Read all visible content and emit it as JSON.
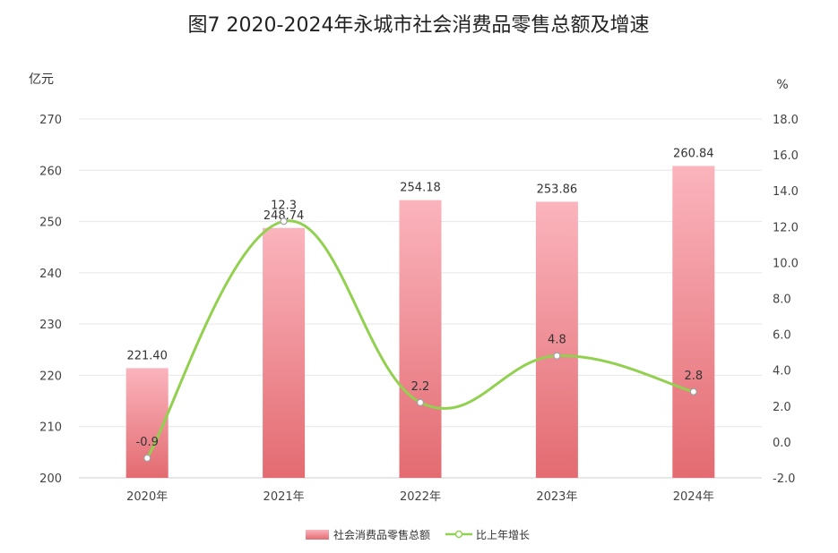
{
  "chart_data": {
    "type": "bar",
    "title": "图7  2020-2024年永城市社会消费品零售总额及增速",
    "left_unit": "亿元",
    "right_unit": "%",
    "categories": [
      "2020年",
      "2021年",
      "2022年",
      "2023年",
      "2024年"
    ],
    "left_ylim": [
      200,
      270
    ],
    "left_ticks": [
      "200",
      "210",
      "220",
      "230",
      "240",
      "250",
      "260",
      "270"
    ],
    "right_ylim": [
      -2.0,
      18.0
    ],
    "right_ticks": [
      "-2.0",
      "0.0",
      "2.0",
      "4.0",
      "6.0",
      "8.0",
      "10.0",
      "12.0",
      "14.0",
      "16.0",
      "18.0"
    ],
    "grid": true,
    "legend_position": "bottom",
    "series": [
      {
        "name": "社会消费品零售总额",
        "type": "bar",
        "axis": "left",
        "values": [
          221.4,
          248.74,
          254.18,
          253.86,
          260.84
        ],
        "labels": [
          "221.40",
          "248.74",
          "254.18",
          "253.86",
          "260.84"
        ],
        "color_top": "#fbb4bd",
        "color_bottom": "#e36b71"
      },
      {
        "name": "比上年增长",
        "type": "line",
        "axis": "right",
        "smooth": true,
        "values": [
          -0.9,
          12.3,
          2.2,
          4.8,
          2.8
        ],
        "labels": [
          "-0.9",
          "12.3",
          "2.2",
          "4.8",
          "2.8"
        ],
        "color": "#92d050"
      }
    ]
  }
}
